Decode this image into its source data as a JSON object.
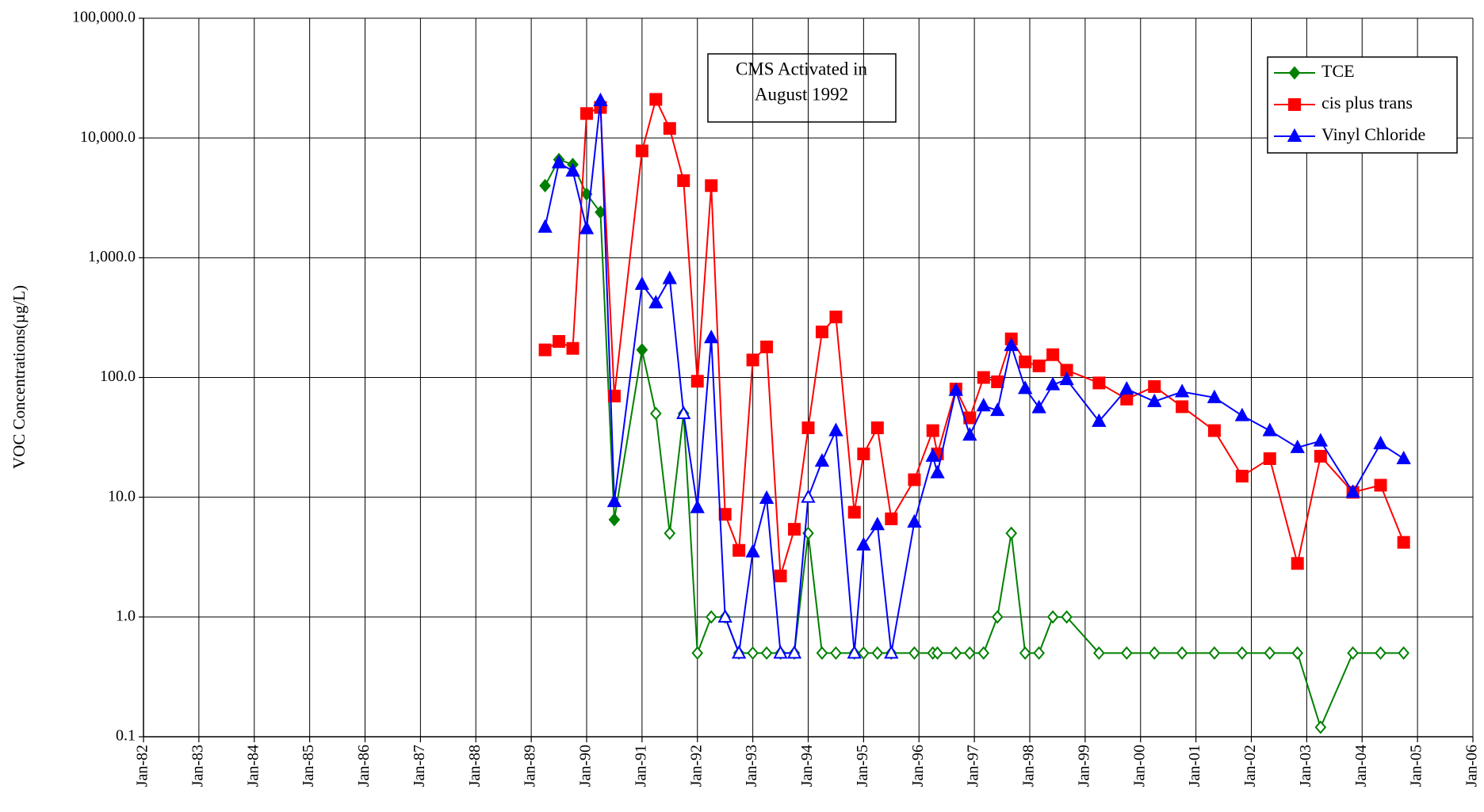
{
  "chart_data": {
    "type": "line",
    "ylabel": "VOC Concentrations(µg/L)",
    "annotation": [
      "CMS Activated in",
      "August 1992"
    ],
    "log_y": true,
    "grid": true,
    "legend": "upper right",
    "x": [
      "1989-04",
      "1989-07",
      "1989-10",
      "1990-01",
      "1990-04",
      "1990-07",
      "1991-01",
      "1991-04",
      "1991-07",
      "1991-10",
      "1992-01",
      "1992-04",
      "1992-07",
      "1992-10",
      "1993-01",
      "1993-04",
      "1993-07",
      "1993-10",
      "1994-01",
      "1994-04",
      "1994-07",
      "1994-11",
      "1995-01",
      "1995-04",
      "1995-07",
      "1995-12",
      "1996-04",
      "1996-05",
      "1996-09",
      "1996-12",
      "1997-03",
      "1997-06",
      "1997-09",
      "1997-12",
      "1998-03",
      "1998-06",
      "1998-09",
      "1999-04",
      "1999-10",
      "2000-04",
      "2000-10",
      "2001-05",
      "2001-11",
      "2002-05",
      "2002-11",
      "2003-04",
      "2003-11",
      "2004-05",
      "2004-10"
    ],
    "series": [
      {
        "name": "TCE",
        "color": "#008000",
        "marker": "diamond",
        "values": [
          4000,
          6600,
          6000,
          3400,
          2400,
          6.5,
          170,
          50,
          5,
          50,
          0.5,
          1,
          1,
          0.5,
          0.5,
          0.5,
          0.5,
          0.5,
          5,
          0.5,
          0.5,
          0.5,
          0.5,
          0.5,
          0.5,
          0.5,
          0.5,
          0.5,
          0.5,
          0.5,
          0.5,
          1,
          5,
          0.5,
          0.5,
          1,
          1,
          0.5,
          0.5,
          0.5,
          0.5,
          0.5,
          0.5,
          0.5,
          0.5,
          0.12,
          0.5,
          0.5,
          0.5
        ],
        "filled": [
          true,
          true,
          true,
          true,
          true,
          true,
          true,
          false,
          false,
          false,
          false,
          false,
          false,
          false,
          false,
          false,
          false,
          false,
          false,
          false,
          false,
          false,
          false,
          false,
          false,
          false,
          false,
          false,
          false,
          false,
          false,
          false,
          false,
          false,
          false,
          false,
          false,
          false,
          false,
          false,
          false,
          false,
          false,
          false,
          false,
          false,
          false,
          false,
          false
        ]
      },
      {
        "name": "cis plus trans",
        "color": "#ff0000",
        "marker": "square",
        "values": [
          170,
          200,
          175,
          16000,
          18000,
          70,
          7800,
          21000,
          12000,
          4400,
          93,
          4000,
          7.2,
          3.6,
          140,
          180,
          2.2,
          5.4,
          38,
          240,
          320,
          7.5,
          23,
          38,
          6.6,
          14,
          36,
          23,
          80,
          46,
          100,
          92,
          210,
          135,
          125,
          155,
          115,
          90,
          66,
          84,
          57,
          36,
          15,
          21,
          2.8,
          22,
          11,
          12.6,
          4.2
        ],
        "filled": [
          true,
          true,
          true,
          true,
          true,
          true,
          true,
          true,
          true,
          true,
          true,
          true,
          true,
          true,
          true,
          true,
          true,
          true,
          true,
          true,
          true,
          true,
          true,
          true,
          true,
          true,
          true,
          true,
          true,
          true,
          true,
          true,
          true,
          true,
          true,
          true,
          true,
          true,
          true,
          true,
          true,
          true,
          true,
          true,
          true,
          true,
          true,
          true,
          true
        ]
      },
      {
        "name": "Vinyl Chloride",
        "color": "#0000ff",
        "marker": "triangle",
        "values": [
          1800,
          6200,
          5300,
          1750,
          20500,
          9.2,
          600,
          420,
          670,
          50,
          8.2,
          215,
          1,
          0.5,
          3.5,
          9.8,
          0.5,
          0.5,
          10,
          20,
          36,
          0.5,
          4,
          5.9,
          0.5,
          6.2,
          22,
          16,
          78,
          33,
          58,
          53,
          185,
          81,
          56,
          87,
          96,
          43,
          80,
          63,
          76,
          68,
          48,
          36,
          26,
          29.5,
          11,
          28,
          21
        ],
        "filled": [
          true,
          true,
          true,
          true,
          true,
          true,
          true,
          true,
          true,
          false,
          true,
          true,
          false,
          false,
          true,
          true,
          false,
          false,
          false,
          true,
          true,
          false,
          true,
          true,
          false,
          true,
          true,
          true,
          true,
          true,
          true,
          true,
          true,
          true,
          true,
          true,
          true,
          true,
          true,
          true,
          true,
          true,
          true,
          true,
          true,
          true,
          true,
          true,
          true
        ]
      }
    ],
    "xlim": [
      "1982-01",
      "2006-01"
    ],
    "xticks": [
      {
        "value": "1982-01",
        "label": "Jan-82"
      },
      {
        "value": "1983-01",
        "label": "Jan-83"
      },
      {
        "value": "1984-01",
        "label": "Jan-84"
      },
      {
        "value": "1985-01",
        "label": "Jan-85"
      },
      {
        "value": "1986-01",
        "label": "Jan-86"
      },
      {
        "value": "1987-01",
        "label": "Jan-87"
      },
      {
        "value": "1988-01",
        "label": "Jan-88"
      },
      {
        "value": "1989-01",
        "label": "Jan-89"
      },
      {
        "value": "1990-01",
        "label": "Jan-90"
      },
      {
        "value": "1991-01",
        "label": "Jan-91"
      },
      {
        "value": "1992-01",
        "label": "Jan-92"
      },
      {
        "value": "1993-01",
        "label": "Jan-93"
      },
      {
        "value": "1994-01",
        "label": "Jan-94"
      },
      {
        "value": "1995-01",
        "label": "Jan-95"
      },
      {
        "value": "1996-01",
        "label": "Jan-96"
      },
      {
        "value": "1997-01",
        "label": "Jan-97"
      },
      {
        "value": "1998-01",
        "label": "Jan-98"
      },
      {
        "value": "1999-01",
        "label": "Jan-99"
      },
      {
        "value": "2000-01",
        "label": "Jan-00"
      },
      {
        "value": "2001-01",
        "label": "Jan-01"
      },
      {
        "value": "2002-01",
        "label": "Jan-02"
      },
      {
        "value": "2003-01",
        "label": "Jan-03"
      },
      {
        "value": "2004-01",
        "label": "Jan-04"
      },
      {
        "value": "2005-01",
        "label": "Jan-05"
      },
      {
        "value": "2006-01",
        "label": "Jan-06"
      }
    ],
    "ylim": [
      0.1,
      100000
    ],
    "yticks": [
      0.1,
      {
        "value": 1,
        "label": "1.0"
      },
      {
        "value": 10,
        "label": "10.0"
      },
      {
        "value": 100,
        "label": "100.0"
      },
      {
        "value": 1000,
        "label": "1,000.0"
      },
      {
        "value": 10000,
        "label": "10,000.0"
      },
      {
        "value": 100000,
        "label": "100,000.0"
      }
    ]
  }
}
